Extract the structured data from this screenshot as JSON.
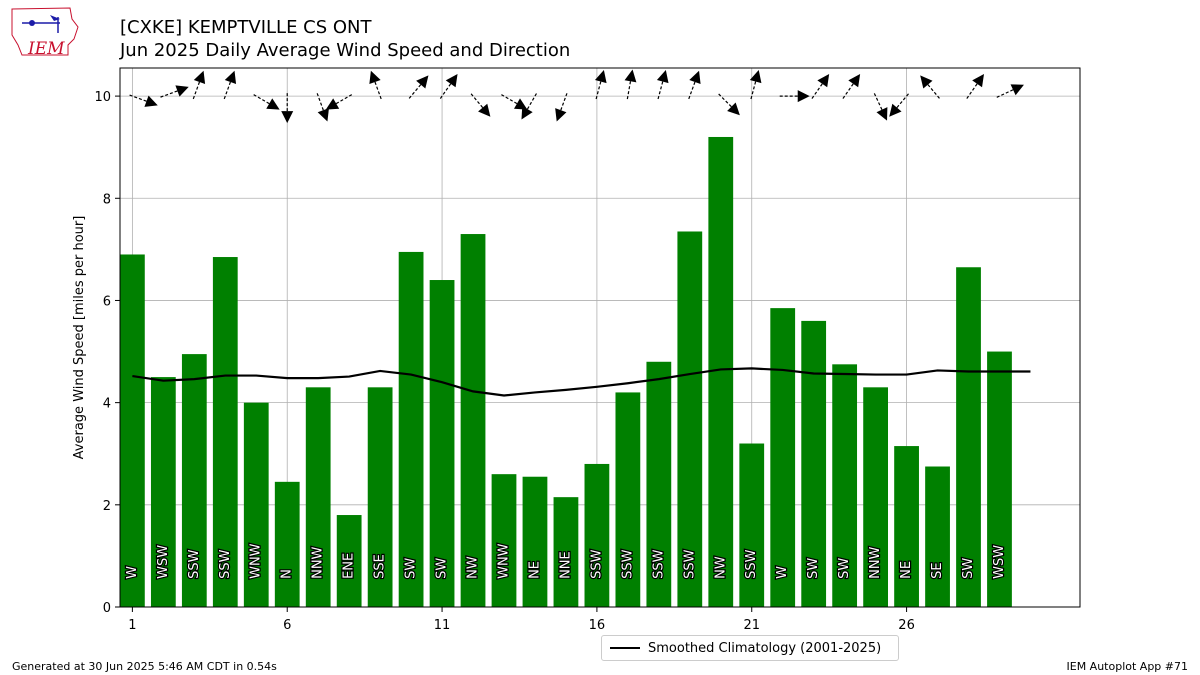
{
  "title_line1": "[CXKE] KEMPTVILLE CS  ONT",
  "title_line2": "Jun 2025 Daily Average Wind Speed and Direction",
  "footer_left": "Generated at 30 Jun 2025 5:46 AM CDT in 0.54s",
  "footer_right": "IEM Autoplot App #71",
  "logo_text": "IEM",
  "colors": {
    "bar": "#008000",
    "climatology": "#000000",
    "grid": "#b0b0b0"
  },
  "chart_data": {
    "type": "bar",
    "ylabel": "Average Wind Speed [miles per hour]",
    "ylim": [
      0,
      10.55
    ],
    "yticks": [
      0,
      2,
      4,
      6,
      8,
      10
    ],
    "xlim": [
      0.6,
      31.6
    ],
    "xticks": [
      1,
      6,
      11,
      16,
      21,
      26
    ],
    "days": [
      1,
      2,
      3,
      4,
      5,
      6,
      7,
      8,
      9,
      10,
      11,
      12,
      13,
      14,
      15,
      16,
      17,
      18,
      19,
      20,
      21,
      22,
      23,
      24,
      25,
      26,
      27,
      28,
      29
    ],
    "values": [
      6.9,
      4.5,
      4.95,
      6.85,
      4.0,
      2.45,
      4.3,
      1.8,
      4.3,
      6.95,
      6.4,
      7.3,
      2.6,
      2.55,
      2.15,
      2.8,
      4.2,
      4.8,
      7.35,
      9.2,
      3.2,
      5.85,
      5.6,
      4.75,
      4.3,
      3.15,
      2.75,
      6.65,
      5.0
    ],
    "directions": [
      "W",
      "WSW",
      "SSW",
      "SSW",
      "WNW",
      "N",
      "NNW",
      "ENE",
      "SSE",
      "SW",
      "SW",
      "NW",
      "WNW",
      "NE",
      "NNE",
      "SSW",
      "SSW",
      "SSW",
      "SSW",
      "NW",
      "SSW",
      "W",
      "SW",
      "SW",
      "NNW",
      "NE",
      "SE",
      "SW",
      "WSW"
    ],
    "direction_degrees": [
      290,
      250,
      200,
      200,
      300,
      360,
      340,
      60,
      160,
      220,
      215,
      320,
      300,
      30,
      20,
      195,
      190,
      195,
      200,
      315,
      195,
      270,
      215,
      215,
      335,
      40,
      140,
      215,
      245
    ],
    "climatology": {
      "name": "Smoothed Climatology (2001-2025)",
      "x": [
        1,
        2,
        3,
        4,
        5,
        6,
        7,
        8,
        9,
        10,
        11,
        12,
        13,
        14,
        15,
        16,
        17,
        18,
        19,
        20,
        21,
        22,
        23,
        24,
        25,
        26,
        27,
        28,
        29,
        30
      ],
      "values": [
        4.52,
        4.43,
        4.46,
        4.53,
        4.53,
        4.48,
        4.48,
        4.51,
        4.62,
        4.55,
        4.4,
        4.22,
        4.14,
        4.2,
        4.25,
        4.31,
        4.38,
        4.46,
        4.56,
        4.65,
        4.67,
        4.64,
        4.57,
        4.56,
        4.55,
        4.55,
        4.63,
        4.61,
        4.61,
        4.61
      ]
    },
    "legend_position": "bottom-center",
    "grid": true
  }
}
